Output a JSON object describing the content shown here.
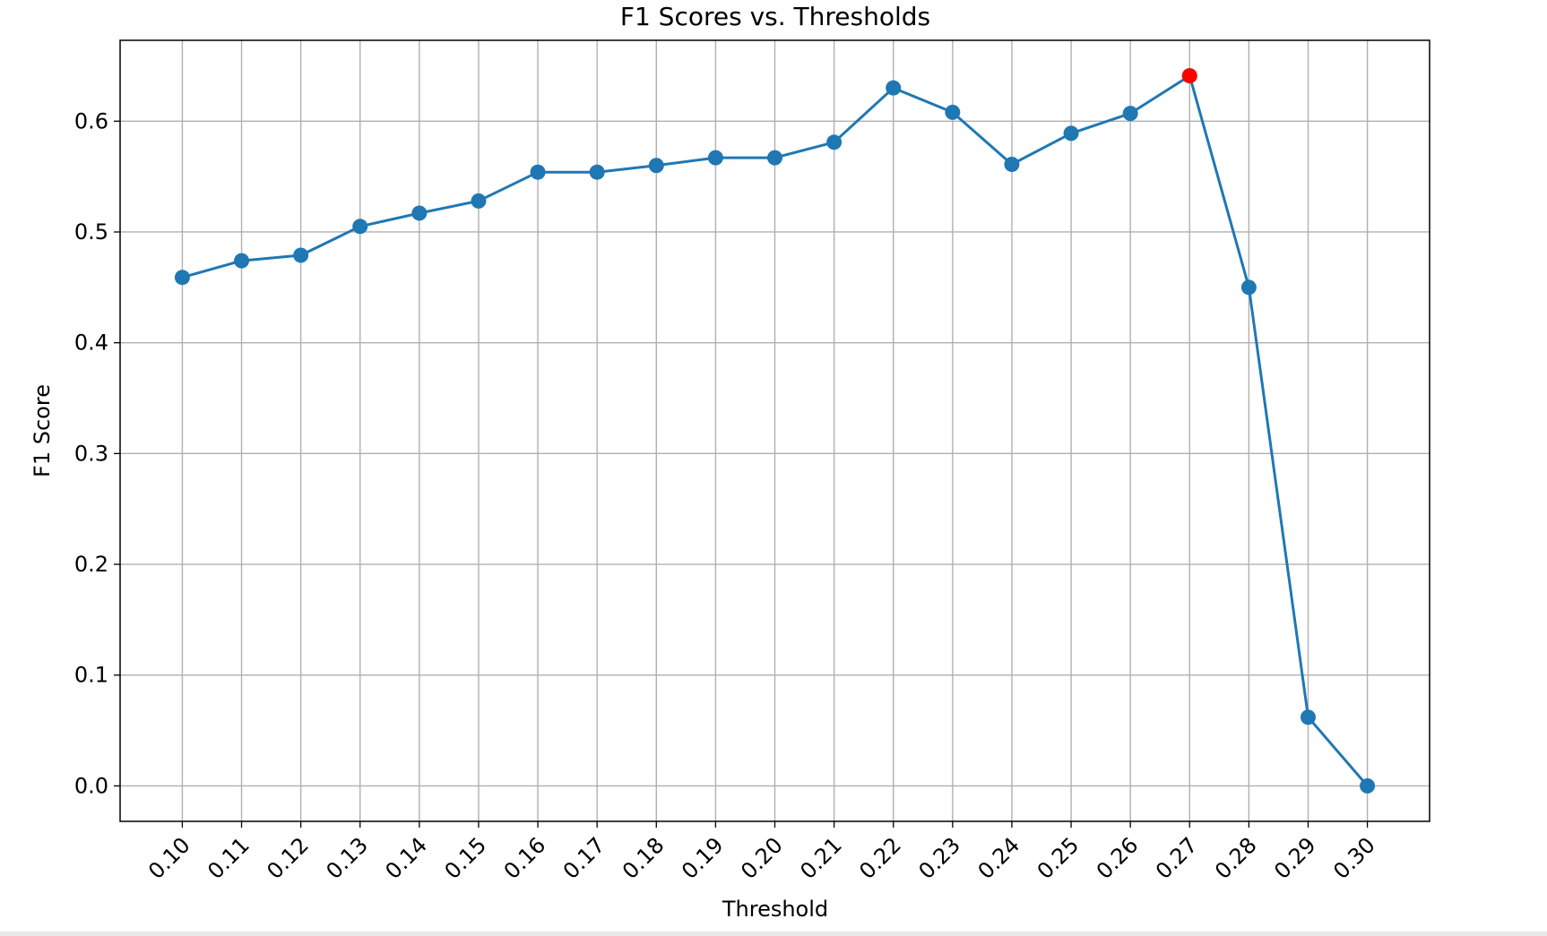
{
  "chart_data": {
    "type": "line",
    "title": "F1 Scores vs. Thresholds",
    "xlabel": "Threshold",
    "ylabel": "F1 Score",
    "x": [
      0.1,
      0.11,
      0.12,
      0.13,
      0.14,
      0.15,
      0.16,
      0.17,
      0.18,
      0.19,
      0.2,
      0.21,
      0.22,
      0.23,
      0.24,
      0.25,
      0.26,
      0.27,
      0.28,
      0.29,
      0.3
    ],
    "x_tick_labels": [
      "0.10",
      "0.11",
      "0.12",
      "0.13",
      "0.14",
      "0.15",
      "0.16",
      "0.17",
      "0.18",
      "0.19",
      "0.20",
      "0.21",
      "0.22",
      "0.23",
      "0.24",
      "0.25",
      "0.26",
      "0.27",
      "0.28",
      "0.29",
      "0.30"
    ],
    "series": [
      {
        "values": [
          0.459,
          0.474,
          0.479,
          0.505,
          0.517,
          0.528,
          0.554,
          0.554,
          0.56,
          0.567,
          0.567,
          0.581,
          0.63,
          0.608,
          0.561,
          0.589,
          0.607,
          0.641,
          0.45,
          0.062,
          0.0
        ],
        "color": "#1f77b4",
        "marker": "circle"
      }
    ],
    "highlight": {
      "x": 0.27,
      "y": 0.641,
      "color": "#ff0000"
    },
    "y_ticks": [
      0.0,
      0.1,
      0.2,
      0.3,
      0.4,
      0.5,
      0.6
    ],
    "y_tick_labels": [
      "0.0",
      "0.1",
      "0.2",
      "0.3",
      "0.4",
      "0.5",
      "0.6"
    ],
    "xlim": [
      0.0895,
      0.3105
    ],
    "ylim": [
      -0.032,
      0.673
    ],
    "grid": true,
    "legend": "none",
    "x_tick_rotation_deg": 45
  }
}
